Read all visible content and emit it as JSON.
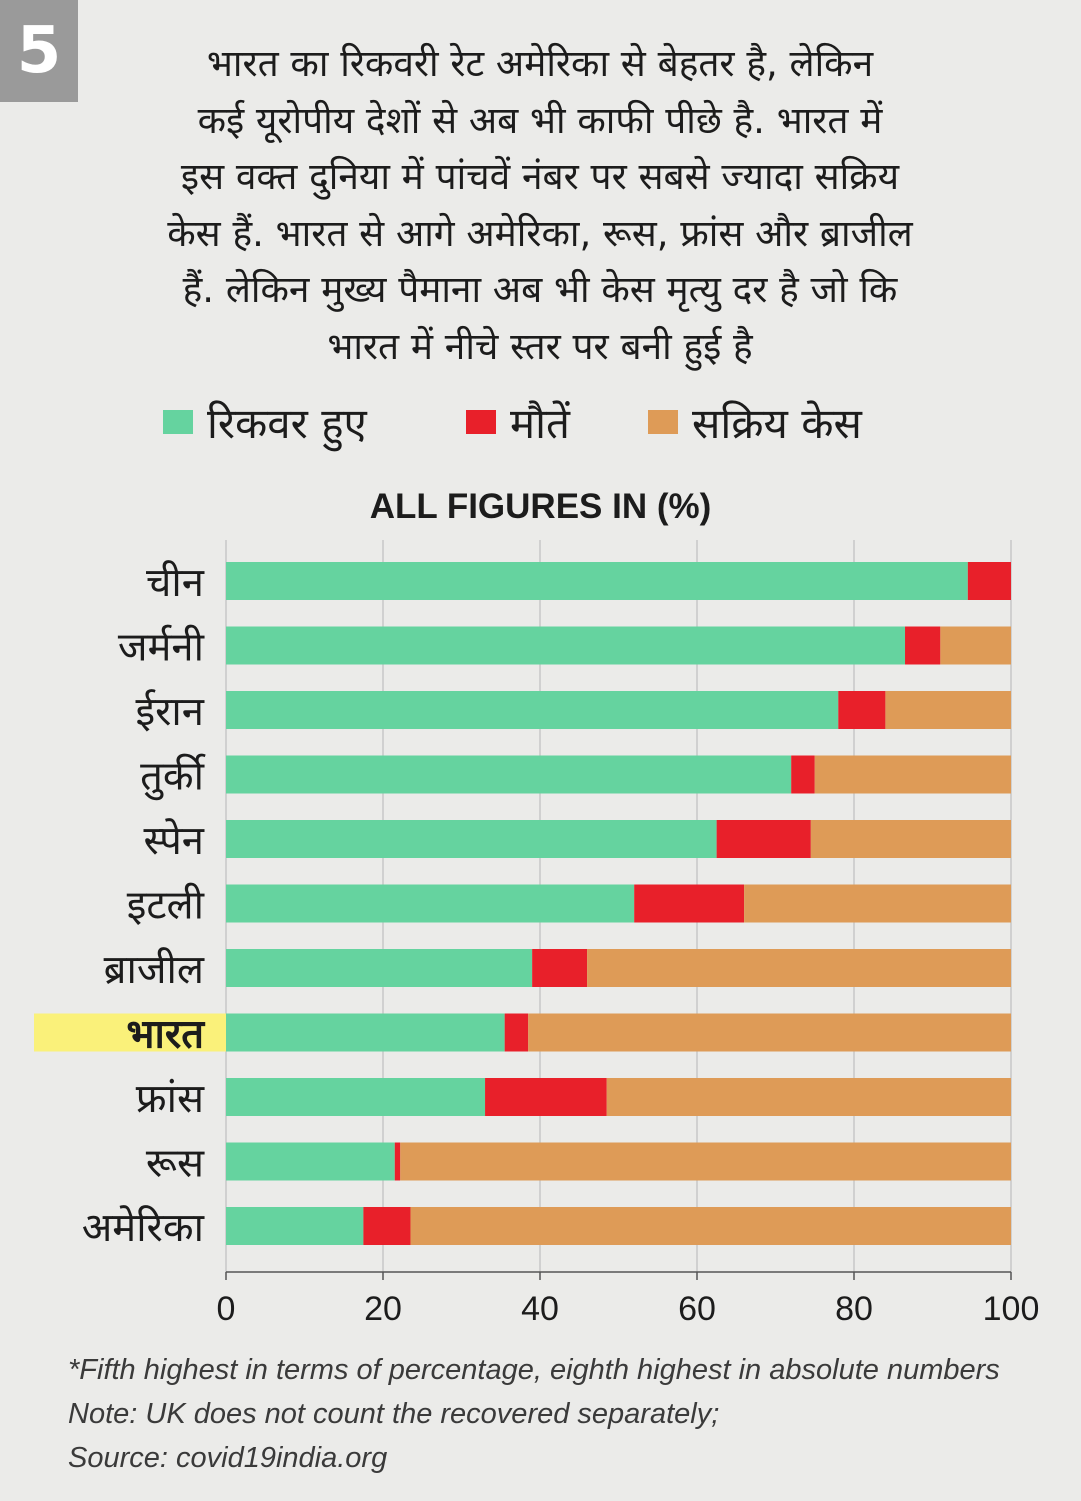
{
  "badge": "5",
  "intro_lines": [
    "भारत का रिकवरी रेट अमेरिका से बेहतर है, लेकिन",
    "कई यूरोपीय देशों से अब भी काफी पीछे है. भारत में",
    "इस वक्त दुनिया में पांचवें नंबर पर सबसे ज्यादा सक्रिय",
    "केस हैं. भारत से आगे अमेरिका, रूस, फ्रांस और ब्राजील",
    "हैं. लेकिन मुख्य पैमाना अब भी केस मृत्यु दर है जो कि",
    "भारत में नीचे स्तर पर बनी हुई है"
  ],
  "legend": [
    {
      "label": "रिकवर हुए",
      "color": "#65d39f"
    },
    {
      "label": "मौतें",
      "color": "#e8202a"
    },
    {
      "label": "सक्रिय केस",
      "color": "#de9b57"
    }
  ],
  "colors": {
    "highlight": "#faf17a",
    "axis": "#555555",
    "grid": "#bfbfbf",
    "text": "#1c1c1c"
  },
  "chart_data": {
    "type": "bar",
    "orientation": "horizontal",
    "stacked": true,
    "title": "ALL FIGURES IN (%)",
    "categories": [
      "चीन",
      "जर्मनी",
      "ईरान",
      "तुर्की",
      "स्पेन",
      "इटली",
      "ब्राजील",
      "भारत",
      "फ्रांस",
      "रूस",
      "अमेरिका"
    ],
    "highlighted_category": "भारत",
    "series": [
      {
        "name": "रिकवर हुए",
        "values": [
          94.5,
          86.5,
          78,
          72,
          62.5,
          52,
          39,
          35.5,
          33,
          21.5,
          17.5
        ]
      },
      {
        "name": "मौतें",
        "values": [
          5.5,
          4.5,
          6,
          3,
          12,
          14,
          7,
          3,
          15.5,
          0.7,
          6
        ]
      },
      {
        "name": "सक्रिय केस",
        "values": [
          0,
          9,
          16,
          25,
          25.5,
          34,
          54,
          61.5,
          51.5,
          77.8,
          76.5
        ]
      }
    ],
    "xlim": [
      0,
      100
    ],
    "xticks": [
      0,
      20,
      40,
      60,
      80,
      100
    ],
    "grid": true
  },
  "notes": [
    "*Fifth highest in terms of percentage, eighth highest in absolute numbers",
    "Note: UK does not count the recovered separately;",
    "Source: covid19india.org"
  ]
}
